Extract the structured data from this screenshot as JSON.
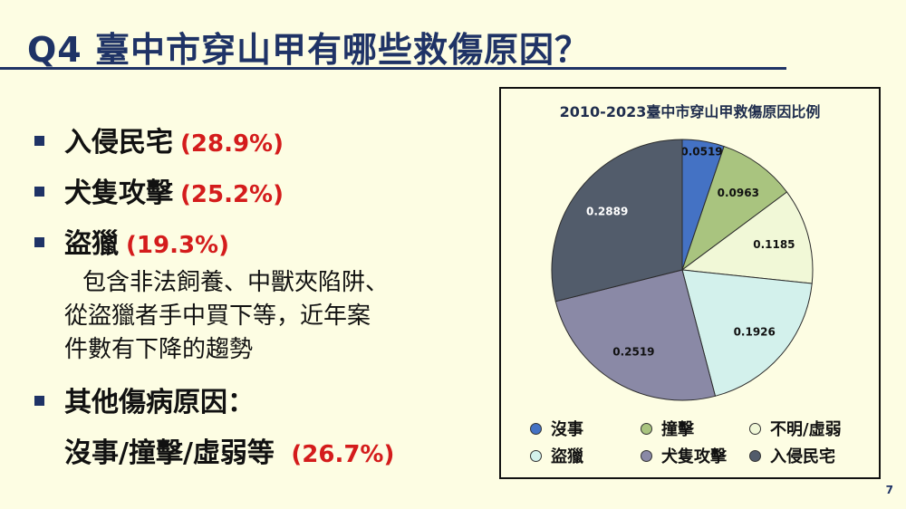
{
  "title": "Q4 臺中市穿山甲有哪些救傷原因？",
  "bullets": [
    {
      "label": "入侵民宅",
      "pct": "(28.9%)"
    },
    {
      "label": "犬隻攻擊",
      "pct": "(25.2%)"
    },
    {
      "label": "盜獵",
      "pct": "(19.3%)"
    }
  ],
  "poaching_desc": [
    "包含非法飼養、中獸夾陷阱、",
    "從盜獵者手中買下等，近年案",
    "件數有下降的趨勢"
  ],
  "other": {
    "label": "其他傷病原因：",
    "detail": "沒事/撞擊/虛弱等",
    "pct": "(26.7%)"
  },
  "page_number": "7",
  "chart_data": {
    "type": "pie",
    "title": "2010-2023臺中市穿山甲救傷原因比例",
    "slices": [
      {
        "name": "沒事",
        "value": 0.0519,
        "label": "0.0519",
        "color": "#4472c4"
      },
      {
        "name": "撞擊",
        "value": 0.0963,
        "label": "0.0963",
        "color": "#a9c47f"
      },
      {
        "name": "不明/虛弱",
        "value": 0.1185,
        "label": "0.1185",
        "color": "#f1f8d7"
      },
      {
        "name": "盜獵",
        "value": 0.1926,
        "label": "0.1926",
        "color": "#d3f1ec"
      },
      {
        "name": "犬隻攻擊",
        "value": 0.2519,
        "label": "0.2519",
        "color": "#8a89a6"
      },
      {
        "name": "入侵民宅",
        "value": 0.2889,
        "label": "0.2889",
        "color": "#525c6b"
      }
    ],
    "legend_position": "bottom"
  }
}
